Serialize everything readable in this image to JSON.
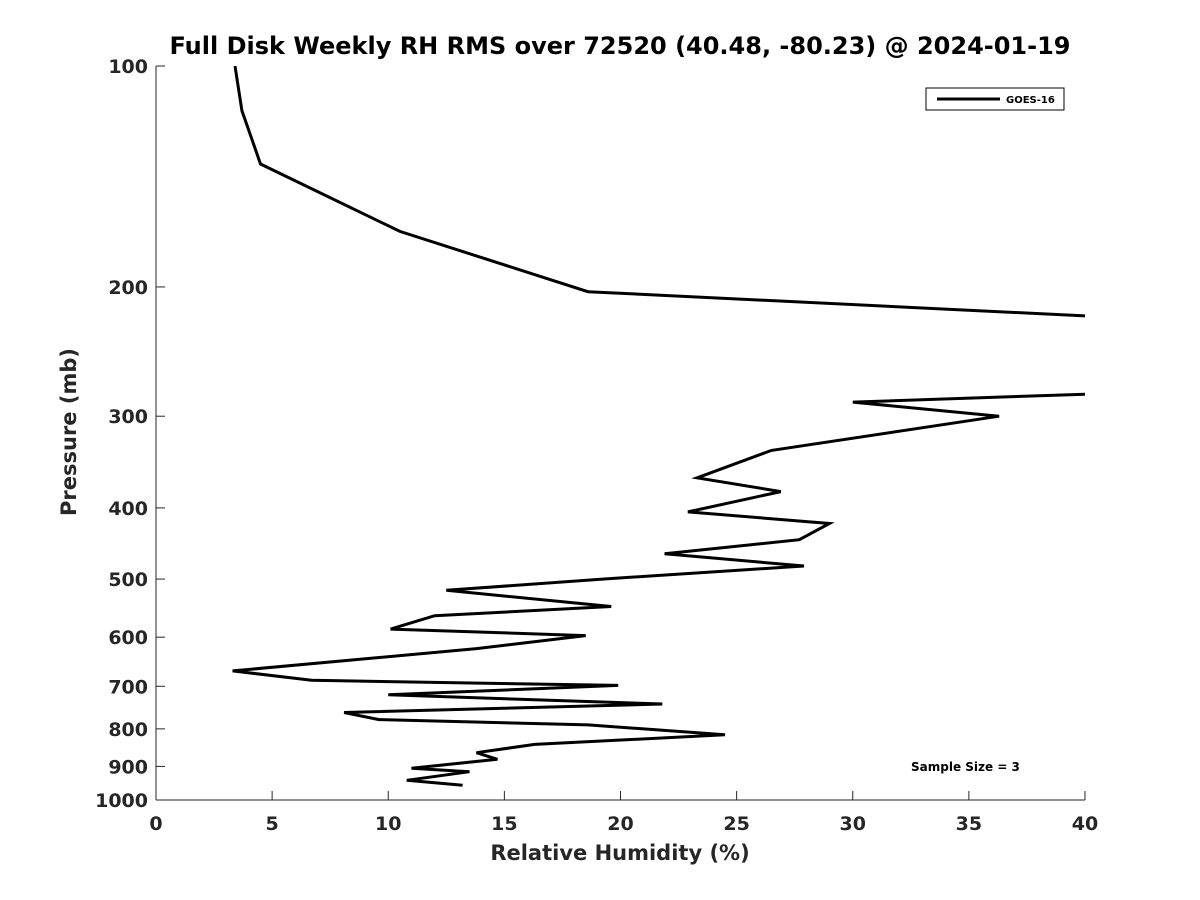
{
  "chart_data": {
    "type": "line",
    "title": "Full Disk Weekly RH RMS over 72520 (40.48, -80.23) @ 2024-01-19",
    "xlabel": "Relative Humidity (%)",
    "ylabel": "Pressure (mb)",
    "xlim": [
      0,
      40
    ],
    "ylim": [
      100,
      1000
    ],
    "yscale": "log",
    "y_reversed": true,
    "grid": false,
    "xticks": [
      0,
      5,
      10,
      15,
      20,
      25,
      30,
      35,
      40
    ],
    "yticks": [
      100,
      200,
      300,
      400,
      500,
      600,
      700,
      800,
      900,
      1000
    ],
    "legend": {
      "position": "top-right",
      "entries": [
        "GOES-16"
      ]
    },
    "annotation": "Sample Size = 3",
    "series": [
      {
        "name": "GOES-16",
        "color": "#000000",
        "segments": [
          {
            "x": [
              3.4,
              3.7,
              4.5,
              10.5,
              18.6,
              40
            ],
            "y": [
              100,
              115,
              136,
              168,
              203,
              219
            ]
          },
          {
            "x": [
              40,
              30.0,
              36.3,
              26.5,
              23.3,
              26.9,
              22.9,
              29.0,
              27.7,
              21.9,
              27.9,
              19.3,
              12.5,
              19.6,
              12.0,
              10.1,
              18.5,
              13.8,
              3.3,
              6.7,
              19.9,
              10.0,
              21.8,
              8.1,
              9.6,
              18.6,
              24.5,
              16.3,
              13.8,
              14.7,
              11.0,
              13.5,
              10.8,
              13.2
            ],
            "y": [
              280,
              287,
              300,
              334,
              364,
              380,
              405,
              420,
              442,
              462,
              480,
              500,
              518,
              545,
              561,
              585,
              597,
              622,
              667,
              687,
              698,
              719,
              740,
              760,
              777,
              790,
              815,
              840,
              862,
              880,
              905,
              915,
              940,
              955
            ]
          }
        ]
      }
    ]
  }
}
